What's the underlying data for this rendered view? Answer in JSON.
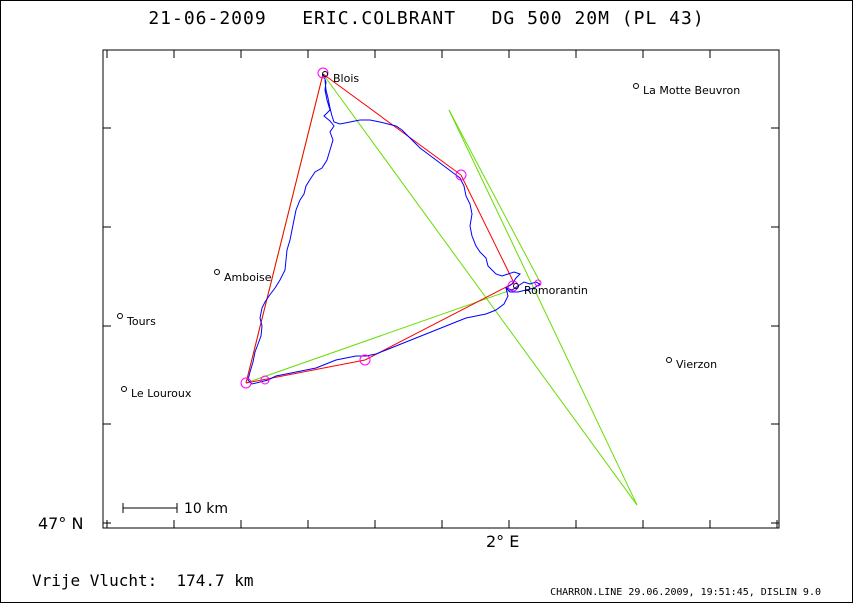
{
  "title": "21-06-2009   ERIC.COLBRANT   DG 500 20M (PL 43)",
  "axes": {
    "lat_label": "47° N",
    "lon_label": "2° E"
  },
  "towns": [
    {
      "name": "Blois"
    },
    {
      "name": "La Motte Beuvron"
    },
    {
      "name": "Amboise"
    },
    {
      "name": "Tours"
    },
    {
      "name": "Le Louroux"
    },
    {
      "name": "Romorantin"
    },
    {
      "name": "Vierzon"
    }
  ],
  "scale_bar": {
    "label": "10 km"
  },
  "colors": {
    "track": "#0000ff",
    "task": "#ff0000",
    "optimised": "#66dd00",
    "turnpoint": "#ff00ff",
    "frame": "#000000"
  },
  "distance": {
    "label": "Vrije Vlucht:",
    "value": "174.7 km"
  },
  "footer": "CHARRON.LINE 29.06.2009, 19:51:45, DISLIN 9.0"
}
